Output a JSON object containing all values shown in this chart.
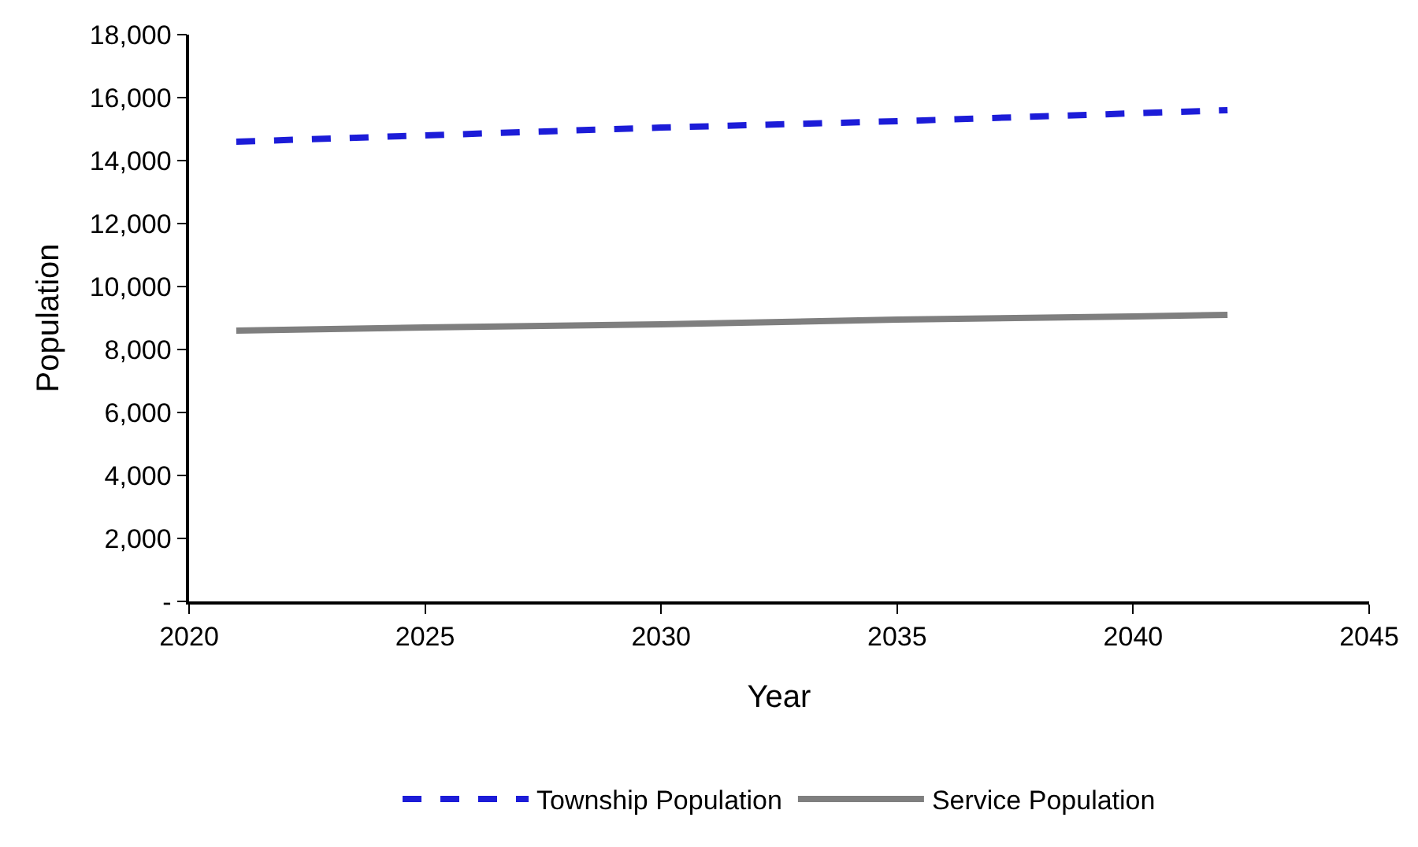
{
  "chart_data": {
    "type": "line",
    "xlabel": "Year",
    "ylabel": "Population",
    "xlim": [
      2020,
      2045
    ],
    "xticks": [
      2020,
      2025,
      2030,
      2035,
      2040,
      2045
    ],
    "ylim": [
      0,
      18000
    ],
    "yticks": [
      {
        "value": 0,
        "label": "-"
      },
      {
        "value": 2000,
        "label": "2,000"
      },
      {
        "value": 4000,
        "label": "4,000"
      },
      {
        "value": 6000,
        "label": "6,000"
      },
      {
        "value": 8000,
        "label": "8,000"
      },
      {
        "value": 10000,
        "label": "10,000"
      },
      {
        "value": 12000,
        "label": "12,000"
      },
      {
        "value": 14000,
        "label": "14,000"
      },
      {
        "value": 16000,
        "label": "16,000"
      },
      {
        "value": 18000,
        "label": "18,000"
      }
    ],
    "grid": false,
    "legend": "bottom",
    "marker": "none",
    "series": [
      {
        "name": "Township Population",
        "color": "#1c1cd8",
        "line_style": "dashed",
        "x": [
          2021,
          2025,
          2030,
          2035,
          2040,
          2042
        ],
        "values": [
          14600,
          14800,
          15050,
          15250,
          15500,
          15600
        ]
      },
      {
        "name": "Service Population",
        "color": "#7f7f7f",
        "line_style": "solid",
        "x": [
          2021,
          2025,
          2030,
          2035,
          2040,
          2042
        ],
        "values": [
          8600,
          8700,
          8800,
          8950,
          9050,
          9100
        ]
      }
    ]
  }
}
